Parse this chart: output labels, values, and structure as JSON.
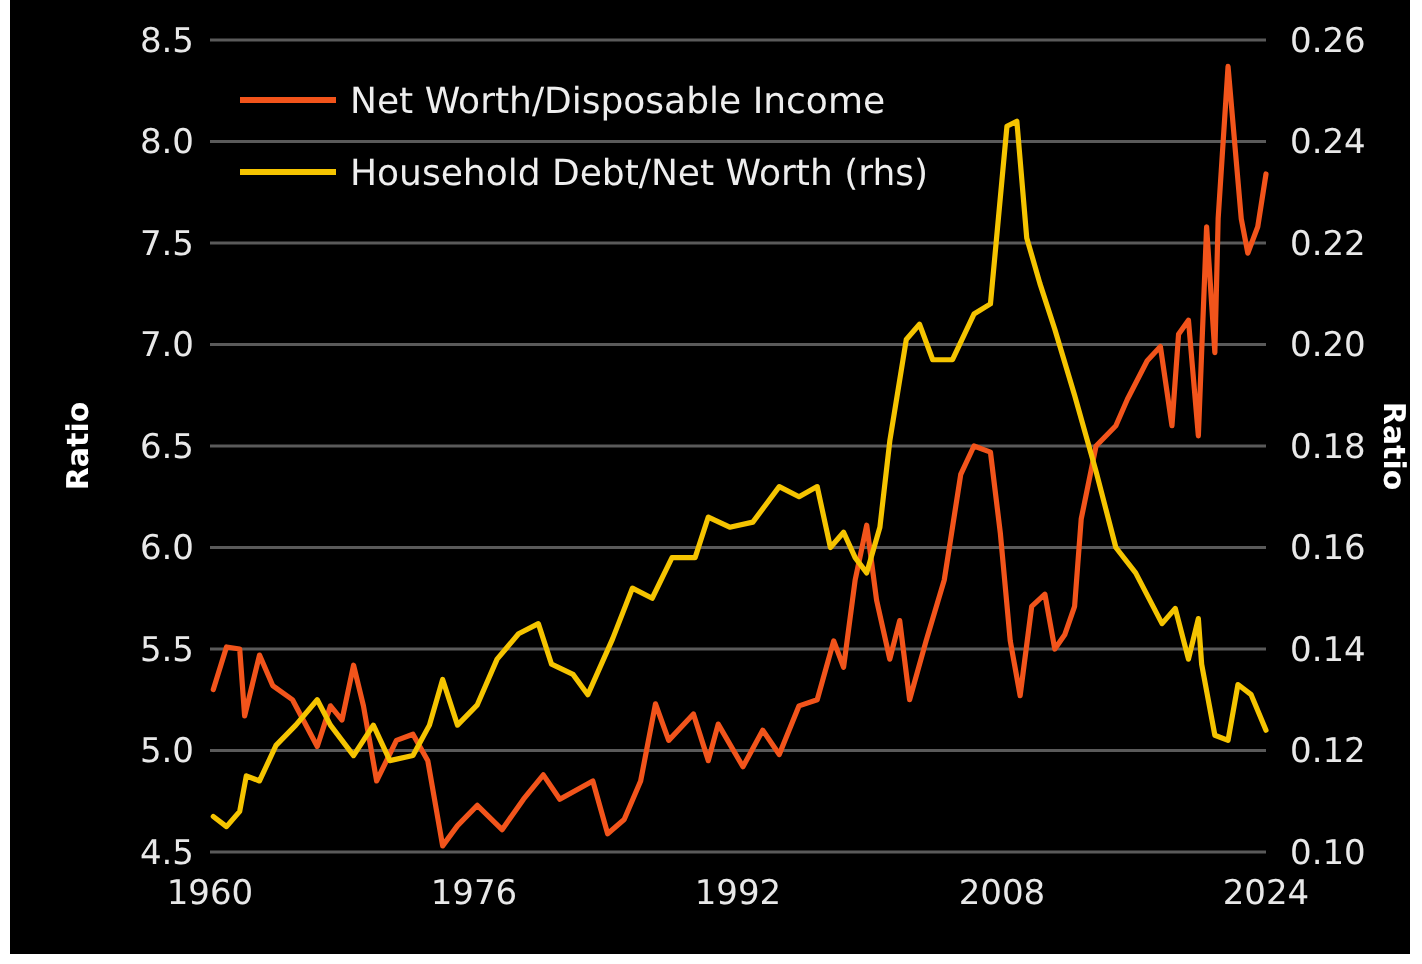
{
  "chart_data": {
    "type": "line",
    "ylabel": "Ratio",
    "y2label": "Ratio",
    "xlim": [
      1960,
      2024
    ],
    "xticks": [
      1960,
      1976,
      1992,
      2008,
      2024
    ],
    "ylim": [
      4.5,
      8.5
    ],
    "yticks": [
      {
        "value": 4.5,
        "label": "4.5"
      },
      {
        "value": 5,
        "label": "5.0"
      },
      {
        "value": 5.5,
        "label": "5.5"
      },
      {
        "value": 6,
        "label": "6.0"
      },
      {
        "value": 6.5,
        "label": "6.5"
      },
      {
        "value": 7,
        "label": "7.0"
      },
      {
        "value": 7.5,
        "label": "7.5"
      },
      {
        "value": 8,
        "label": "8.0"
      },
      {
        "value": 8.5,
        "label": "8.5"
      }
    ],
    "y2lim": [
      0.1,
      0.26
    ],
    "y2ticks": [
      {
        "value": 0.1,
        "label": "0.10"
      },
      {
        "value": 0.12,
        "label": "0.12"
      },
      {
        "value": 0.14,
        "label": "0.14"
      },
      {
        "value": 0.16,
        "label": "0.16"
      },
      {
        "value": 0.18,
        "label": "0.18"
      },
      {
        "value": 0.2,
        "label": "0.20"
      },
      {
        "value": 0.22,
        "label": "0.22"
      },
      {
        "value": 0.24,
        "label": "0.24"
      },
      {
        "value": 0.26,
        "label": "0.26"
      }
    ],
    "grid": "y",
    "legend": "top left",
    "marker": "none",
    "line_style": "solid",
    "series": [
      {
        "name": "Net Worth/Disposable Income",
        "color": "#f2541b",
        "x": [
          1960.2,
          1961,
          1961.8,
          1962.1,
          1963,
          1963.8,
          1965,
          1966.5,
          1967.3,
          1968,
          1968.7,
          1969.3,
          1970.1,
          1971.3,
          1972.3,
          1973.2,
          1974.1,
          1975,
          1976.2,
          1977.7,
          1979,
          1980.2,
          1981.2,
          1983.2,
          1984.1,
          1985.1,
          1986.1,
          1987,
          1987.8,
          1989.3,
          1990.2,
          1990.8,
          1992.3,
          1993.5,
          1994.5,
          1995.7,
          1996.8,
          1997.8,
          1998.4,
          1999.1,
          1999.8,
          2000.4,
          2001.2,
          2001.8,
          2002.4,
          2003.4,
          2004.5,
          2005.5,
          2006.3,
          2007.3,
          2007.9,
          2008.5,
          2009.1,
          2009.8,
          2010.6,
          2011.2,
          2011.8,
          2012.4,
          2012.8,
          2013.7,
          2014.9,
          2015.6,
          2016.8,
          2017.6,
          2018.3,
          2018.7,
          2019.3,
          2019.9,
          2020.4,
          2020.9,
          2021.1,
          2021.7,
          2022.5,
          2022.9,
          2023.5,
          2024
        ],
        "values": [
          5.3,
          5.51,
          5.5,
          5.17,
          5.47,
          5.32,
          5.25,
          5.02,
          5.22,
          5.15,
          5.42,
          5.22,
          4.85,
          5.05,
          5.08,
          4.95,
          4.53,
          4.63,
          4.73,
          4.61,
          4.76,
          4.88,
          4.76,
          4.85,
          4.59,
          4.66,
          4.85,
          5.23,
          5.05,
          5.18,
          4.95,
          5.13,
          4.92,
          5.1,
          4.98,
          5.22,
          5.25,
          5.54,
          5.41,
          5.84,
          6.11,
          5.74,
          5.45,
          5.64,
          5.25,
          5.54,
          5.84,
          6.36,
          6.5,
          6.47,
          6.07,
          5.54,
          5.27,
          5.71,
          5.77,
          5.5,
          5.57,
          5.71,
          6.14,
          6.5,
          6.6,
          6.73,
          6.92,
          6.99,
          6.6,
          7.05,
          7.12,
          6.55,
          7.58,
          6.96,
          7.62,
          8.37,
          7.62,
          7.45,
          7.58,
          7.84
        ]
      },
      {
        "name": "Household Debt/Net Worth (rhs)",
        "color": "#f5c400",
        "axis": "y2",
        "x": [
          1960.2,
          1961,
          1961.8,
          1962.2,
          1963,
          1964,
          1965.2,
          1966.5,
          1967.3,
          1968.7,
          1969.9,
          1970.9,
          1972.3,
          1973.3,
          1974.1,
          1975,
          1976.2,
          1977.4,
          1978.7,
          1979.9,
          1980.7,
          1982,
          1982.9,
          1984.4,
          1985.6,
          1986.8,
          1988,
          1989.4,
          1990.2,
          1991.5,
          1992.9,
          1994.5,
          1995.7,
          1996.8,
          1997.6,
          1998.4,
          1999.1,
          1999.8,
          2000.6,
          2001.2,
          2002.2,
          2003,
          2003.8,
          2005,
          2006.3,
          2007.3,
          2008.3,
          2008.9,
          2009.5,
          2010.3,
          2011.2,
          2012.4,
          2013.7,
          2014.9,
          2016.1,
          2017.7,
          2018.5,
          2019.3,
          2019.9,
          2020.1,
          2020.9,
          2021.7,
          2022.3,
          2023.1,
          2024
        ],
        "values": [
          0.107,
          0.105,
          0.108,
          0.115,
          0.114,
          0.121,
          0.125,
          0.13,
          0.125,
          0.119,
          0.125,
          0.118,
          0.119,
          0.125,
          0.134,
          0.125,
          0.129,
          0.138,
          0.143,
          0.145,
          0.137,
          0.135,
          0.131,
          0.142,
          0.152,
          0.15,
          0.158,
          0.158,
          0.166,
          0.164,
          0.165,
          0.172,
          0.17,
          0.172,
          0.16,
          0.163,
          0.158,
          0.155,
          0.164,
          0.181,
          0.201,
          0.204,
          0.197,
          0.197,
          0.206,
          0.208,
          0.243,
          0.244,
          0.221,
          0.212,
          0.203,
          0.19,
          0.175,
          0.16,
          0.155,
          0.145,
          0.148,
          0.138,
          0.146,
          0.137,
          0.123,
          0.122,
          0.133,
          0.131,
          0.124
        ]
      }
    ]
  }
}
